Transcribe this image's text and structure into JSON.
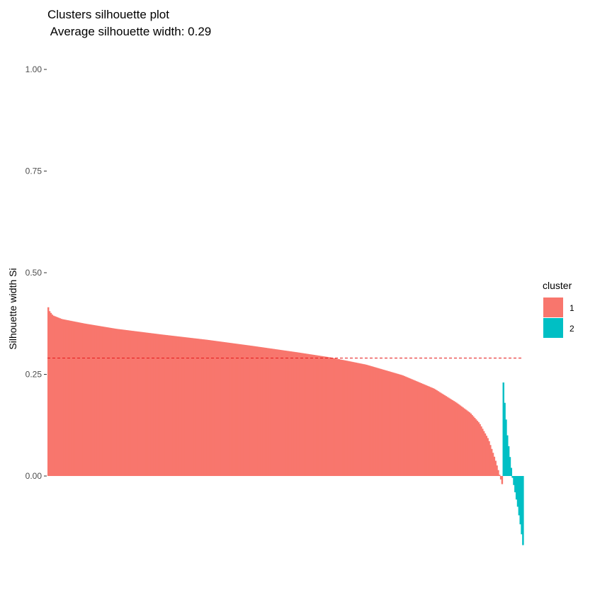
{
  "chart_data": {
    "type": "bar",
    "title": "Clusters silhouette plot",
    "subtitle": " Average silhouette width: 0.29",
    "xlabel": "",
    "ylabel": "Silhouette width Si",
    "ylim": [
      -0.17,
      1.0
    ],
    "yticks": [
      "0.00",
      "0.25",
      "0.50",
      "0.75",
      "1.00"
    ],
    "ytick_values": [
      0,
      0.25,
      0.5,
      0.75,
      1.0
    ],
    "average_silhouette": 0.29,
    "grid": false,
    "legend": {
      "title": "cluster",
      "placement": "right"
    },
    "series": [
      {
        "name": "1",
        "color": "#F8766D",
        "count": 349,
        "profile": [
          [
            0,
            0.415
          ],
          [
            0.003,
            0.405
          ],
          [
            0.01,
            0.395
          ],
          [
            0.03,
            0.386
          ],
          [
            0.08,
            0.375
          ],
          [
            0.15,
            0.362
          ],
          [
            0.25,
            0.348
          ],
          [
            0.35,
            0.335
          ],
          [
            0.45,
            0.32
          ],
          [
            0.55,
            0.304
          ],
          [
            0.62,
            0.292
          ],
          [
            0.7,
            0.274
          ],
          [
            0.78,
            0.248
          ],
          [
            0.85,
            0.215
          ],
          [
            0.9,
            0.18
          ],
          [
            0.93,
            0.155
          ],
          [
            0.95,
            0.13
          ],
          [
            0.97,
            0.09
          ],
          [
            0.985,
            0.04
          ],
          [
            0.995,
            0.0
          ],
          [
            1.0,
            -0.02
          ]
        ]
      },
      {
        "name": "2",
        "color": "#00BFC4",
        "count": 16,
        "profile": [
          [
            0,
            0.23
          ],
          [
            0.08,
            0.17
          ],
          [
            0.2,
            0.1
          ],
          [
            0.35,
            0.04
          ],
          [
            0.45,
            0.0
          ],
          [
            0.6,
            -0.04
          ],
          [
            0.75,
            -0.08
          ],
          [
            0.9,
            -0.13
          ],
          [
            1.0,
            -0.17
          ]
        ]
      }
    ]
  }
}
